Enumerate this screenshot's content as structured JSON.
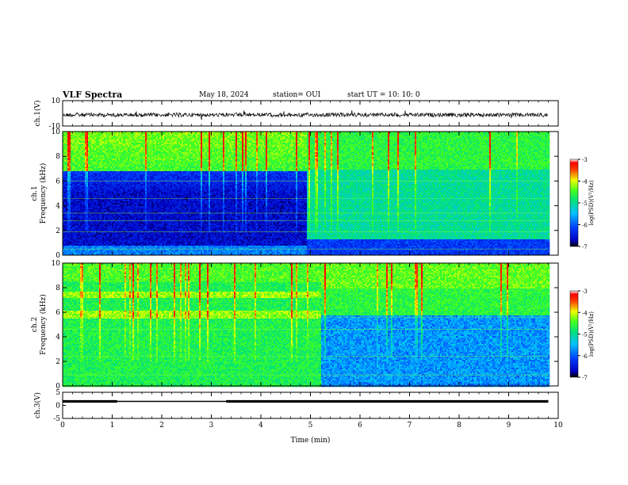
{
  "header": {
    "title": "VLF Spectra",
    "date": "May 18, 2024",
    "station": "station= OUI",
    "start": "start  UT  =   10: 10: 0"
  },
  "colors": {
    "trace": "#000000",
    "background": "#ffffff",
    "axes": "#000000"
  },
  "chart_data": [
    {
      "type": "line",
      "name": "ch1-waveform",
      "ylabel": "ch.1(V)",
      "ylim": [
        -10,
        10
      ],
      "yticks": [
        "10",
        "-10"
      ],
      "x": [
        0,
        1,
        2,
        3,
        4,
        5,
        6,
        7,
        8,
        9,
        9.8
      ],
      "values": [
        0,
        0,
        0,
        0,
        0,
        0,
        0,
        0,
        0,
        0,
        0
      ],
      "grid": false
    },
    {
      "type": "heatmap",
      "name": "ch1-spectrogram",
      "ylabel": "ch.1\nFrequency (kHz)",
      "ylim": [
        0,
        10
      ],
      "yticks": [
        "0",
        "2",
        "4",
        "6",
        "8",
        "10"
      ],
      "xlim": [
        0,
        10
      ],
      "segments": [
        {
          "t0": 0,
          "t1": 4.9,
          "quiet_band_khz": [
            0.8,
            6.8
          ],
          "level": "low"
        },
        {
          "t0": 4.9,
          "t1": 9.8,
          "quiet_band_khz": [
            0,
            1.4
          ],
          "level": "mid"
        }
      ],
      "colorbar": {
        "label": "log(PSD)(V²/Hz)",
        "ticks": [
          "-3",
          "-4",
          "-5",
          "-6",
          "-7"
        ],
        "range": [
          -7,
          -3
        ]
      }
    },
    {
      "type": "heatmap",
      "name": "ch2-spectrogram",
      "ylabel": "ch.2\nFrequency (kHz)",
      "ylim": [
        0,
        10
      ],
      "yticks": [
        "0",
        "2",
        "4",
        "6",
        "8",
        "10"
      ],
      "xlim": [
        0,
        10
      ],
      "segments": [
        {
          "t0": 0,
          "t1": 5.2,
          "quiet_band_khz": [
            0,
            0
          ],
          "level": "high"
        },
        {
          "t0": 5.2,
          "t1": 9.8,
          "quiet_band_khz": [
            0.2,
            5.8
          ],
          "level": "low"
        }
      ],
      "colorbar": {
        "label": "log(PSD)(V²/Hz)",
        "ticks": [
          "-3",
          "-4",
          "-5",
          "-6",
          "-7"
        ],
        "range": [
          -7,
          -3
        ]
      }
    },
    {
      "type": "line",
      "name": "ch3-waveform",
      "ylabel": "ch.3(V)",
      "ylim": [
        -5,
        5
      ],
      "yticks": [
        "5",
        "0",
        "-5"
      ],
      "x": [
        0,
        1.1,
        1.1,
        3.3,
        3.3,
        9.8
      ],
      "values": [
        0,
        0,
        0,
        0,
        0,
        0
      ],
      "thick_segments": [
        [
          0,
          1.1
        ],
        [
          3.3,
          9.8
        ]
      ],
      "xlabel": "Time  (min)",
      "xticks": [
        "0",
        "1",
        "2",
        "3",
        "4",
        "5",
        "6",
        "7",
        "8",
        "9",
        "10"
      ],
      "xlim": [
        0,
        10
      ]
    }
  ]
}
